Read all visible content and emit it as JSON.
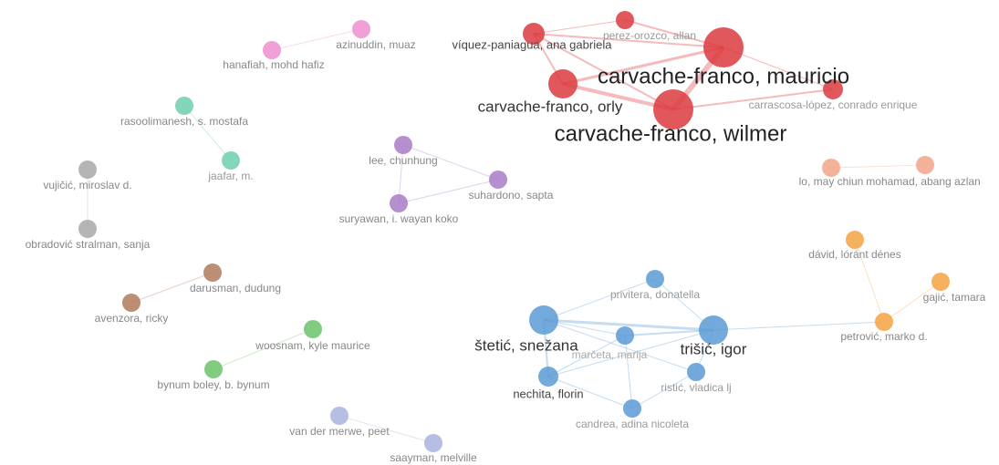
{
  "nodes": [
    {
      "label": "carvache-franco, mauricio"
    },
    {
      "label": "carvache-franco, wilmer"
    },
    {
      "label": "carvache-franco, orly"
    },
    {
      "label": "víquez-paniagua, ana gabriela"
    },
    {
      "label": "perez-orozco, allan"
    },
    {
      "label": "carrascosa-lópez, conrado enrique"
    },
    {
      "label": "azinuddin, muaz"
    },
    {
      "label": "hanafiah, mohd hafiz"
    },
    {
      "label": "rasoolimanesh, s. mostafa"
    },
    {
      "label": "jaafar, m."
    },
    {
      "label": "vujičić, miroslav d."
    },
    {
      "label": "obradović stralman, sanja"
    },
    {
      "label": "lee, chunhung"
    },
    {
      "label": "suhardono, sapta"
    },
    {
      "label": "suryawan, i. wayan koko"
    },
    {
      "label": "darusman, dudung"
    },
    {
      "label": "avenzora, ricky"
    },
    {
      "label": "woosnam, kyle maurice"
    },
    {
      "label": "bynum boley, b. bynum"
    },
    {
      "label": "van der merwe, peet"
    },
    {
      "label": "saayman, melville"
    },
    {
      "label": "lo, may chiun"
    },
    {
      "label": "mohamad, abang azlan"
    },
    {
      "label": "dávid, lóránt dénes"
    },
    {
      "label": "gajić, tamara"
    },
    {
      "label": "petrović, marko d."
    },
    {
      "label": "štetić, snežana"
    },
    {
      "label": "trišić, igor"
    },
    {
      "label": "privitera, donatella"
    },
    {
      "label": "marčeta, marija"
    },
    {
      "label": "nechita, florin"
    },
    {
      "label": "ristić, vladica lj"
    },
    {
      "label": "candrea, adina nicoleta"
    }
  ]
}
